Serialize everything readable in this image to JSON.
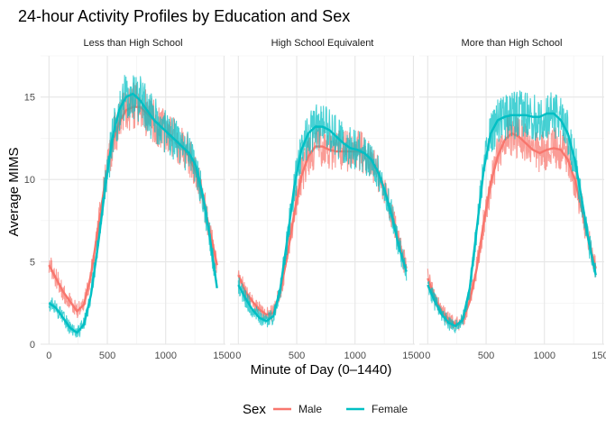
{
  "chart_data": {
    "type": "line",
    "title": "24-hour Activity Profiles by Education and Sex",
    "xlabel": "Minute of Day (0–1440)",
    "ylabel": "Average MIMS",
    "xlim": [
      0,
      1440
    ],
    "ylim": [
      0,
      17.5
    ],
    "x_ticks": [
      0,
      500,
      1000,
      1500
    ],
    "x_tick_labels": [
      "0",
      "500",
      "1000",
      "1500"
    ],
    "y_ticks": [
      0,
      5,
      10,
      15
    ],
    "y_tick_labels": [
      "0",
      "5",
      "10",
      "15"
    ],
    "grid": true,
    "legend": {
      "title": "Sex",
      "position": "bottom",
      "entries": [
        {
          "label": "Male",
          "color": "#F8766D"
        },
        {
          "label": "Female",
          "color": "#00BFC4"
        }
      ]
    },
    "panels": [
      {
        "label": "Less than High School",
        "series": [
          {
            "name": "Male",
            "color": "#F8766D",
            "x": [
              0,
              60,
              120,
              180,
              240,
              300,
              360,
              420,
              480,
              540,
              600,
              660,
              720,
              780,
              840,
              900,
              960,
              1020,
              1080,
              1140,
              1200,
              1260,
              1320,
              1380,
              1440
            ],
            "y": [
              4.8,
              4.0,
              3.2,
              2.6,
              2.0,
              2.4,
              4.2,
              7.0,
              9.8,
              12.2,
              13.4,
              14.2,
              14.4,
              14.4,
              14.0,
              13.6,
              13.2,
              12.8,
              12.4,
              12.0,
              11.4,
              10.4,
              8.8,
              6.8,
              4.8
            ]
          },
          {
            "name": "Female",
            "color": "#00BFC4",
            "x": [
              0,
              60,
              120,
              180,
              240,
              300,
              360,
              420,
              480,
              540,
              600,
              660,
              720,
              780,
              840,
              900,
              960,
              1020,
              1080,
              1140,
              1200,
              1260,
              1320,
              1380,
              1440
            ],
            "y": [
              2.5,
              2.2,
              1.6,
              1.0,
              0.7,
              1.2,
              3.0,
              6.0,
              9.4,
              12.4,
              14.2,
              15.0,
              15.2,
              14.8,
              14.2,
              13.6,
              13.2,
              12.8,
              12.4,
              12.0,
              11.6,
              10.8,
              9.0,
              6.4,
              3.4
            ]
          }
        ]
      },
      {
        "label": "High School Equivalent",
        "series": [
          {
            "name": "Male",
            "color": "#F8766D",
            "x": [
              0,
              60,
              120,
              180,
              240,
              300,
              360,
              420,
              480,
              540,
              600,
              660,
              720,
              780,
              840,
              900,
              960,
              1020,
              1080,
              1140,
              1200,
              1260,
              1320,
              1380,
              1440
            ],
            "y": [
              4.2,
              3.2,
              2.6,
              2.1,
              1.8,
              1.9,
              3.2,
              5.4,
              8.0,
              10.2,
              11.4,
              12.0,
              12.0,
              11.8,
              11.7,
              11.7,
              11.7,
              11.7,
              11.6,
              11.2,
              10.4,
              9.2,
              7.8,
              6.0,
              4.6
            ]
          },
          {
            "name": "Female",
            "color": "#00BFC4",
            "x": [
              0,
              60,
              120,
              180,
              240,
              300,
              360,
              420,
              480,
              540,
              600,
              660,
              720,
              780,
              840,
              900,
              960,
              1020,
              1080,
              1140,
              1200,
              1260,
              1320,
              1380,
              1440
            ],
            "y": [
              3.6,
              2.8,
              2.1,
              1.6,
              1.4,
              1.7,
              3.4,
              6.4,
              9.6,
              11.8,
              12.8,
              13.2,
              13.2,
              13.0,
              12.6,
              12.2,
              11.9,
              11.8,
              11.6,
              11.2,
              10.4,
              9.2,
              7.6,
              5.8,
              4.4
            ]
          }
        ]
      },
      {
        "label": "More than High School",
        "series": [
          {
            "name": "Male",
            "color": "#F8766D",
            "x": [
              0,
              60,
              120,
              180,
              240,
              300,
              360,
              420,
              480,
              540,
              600,
              660,
              720,
              780,
              840,
              900,
              960,
              1020,
              1080,
              1140,
              1200,
              1260,
              1320,
              1380,
              1440
            ],
            "y": [
              4.0,
              2.8,
              2.0,
              1.5,
              1.2,
              1.4,
              2.6,
              4.6,
              7.4,
              9.8,
              11.4,
              12.4,
              12.8,
              12.6,
              12.2,
              11.8,
              11.6,
              11.8,
              11.9,
              11.8,
              11.2,
              10.0,
              8.2,
              6.2,
              4.6
            ]
          },
          {
            "name": "Female",
            "color": "#00BFC4",
            "x": [
              0,
              60,
              120,
              180,
              240,
              300,
              360,
              420,
              480,
              540,
              600,
              660,
              720,
              780,
              840,
              900,
              960,
              1020,
              1080,
              1140,
              1200,
              1260,
              1320,
              1380,
              1440
            ],
            "y": [
              3.6,
              2.6,
              1.8,
              1.3,
              1.1,
              1.5,
              3.4,
              7.0,
              10.6,
              12.8,
              13.6,
              13.8,
              13.9,
              13.9,
              13.9,
              13.8,
              13.8,
              14.0,
              14.0,
              13.6,
              12.8,
              11.2,
              8.8,
              6.2,
              4.2
            ]
          }
        ]
      }
    ]
  }
}
